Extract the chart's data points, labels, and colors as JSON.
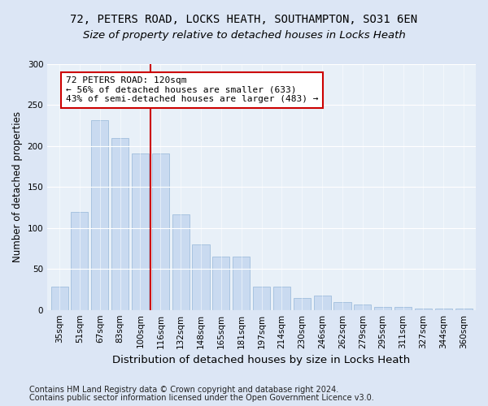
{
  "title1": "72, PETERS ROAD, LOCKS HEATH, SOUTHAMPTON, SO31 6EN",
  "title2": "Size of property relative to detached houses in Locks Heath",
  "xlabel": "Distribution of detached houses by size in Locks Heath",
  "ylabel": "Number of detached properties",
  "categories": [
    "35sqm",
    "51sqm",
    "67sqm",
    "83sqm",
    "100sqm",
    "116sqm",
    "132sqm",
    "148sqm",
    "165sqm",
    "181sqm",
    "197sqm",
    "214sqm",
    "230sqm",
    "246sqm",
    "262sqm",
    "279sqm",
    "295sqm",
    "311sqm",
    "327sqm",
    "344sqm",
    "360sqm"
  ],
  "values": [
    28,
    120,
    232,
    210,
    191,
    191,
    117,
    80,
    65,
    65,
    28,
    28,
    15,
    18,
    10,
    7,
    4,
    4,
    2,
    2,
    2
  ],
  "bar_color": "#c9daf0",
  "bar_edge_color": "#a0bedd",
  "vline_x": 5.0,
  "vline_color": "#cc0000",
  "annotation_box_text": "72 PETERS ROAD: 120sqm\n← 56% of detached houses are smaller (633)\n43% of semi-detached houses are larger (483) →",
  "annotation_box_color": "#cc0000",
  "annotation_box_fill": "#ffffff",
  "footnote1": "Contains HM Land Registry data © Crown copyright and database right 2024.",
  "footnote2": "Contains public sector information licensed under the Open Government Licence v3.0.",
  "ylim": [
    0,
    300
  ],
  "title1_fontsize": 10,
  "title2_fontsize": 9.5,
  "xlabel_fontsize": 9.5,
  "ylabel_fontsize": 8.5,
  "tick_fontsize": 7.5,
  "annotation_fontsize": 8,
  "footnote_fontsize": 7,
  "bg_color": "#dce6f5",
  "plot_bg_color": "#e8f0f8"
}
